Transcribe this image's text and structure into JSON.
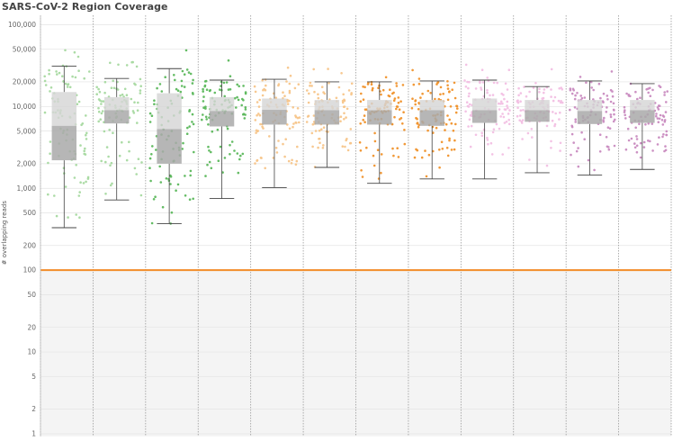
{
  "chart_data": {
    "type": "box",
    "title": "SARS-CoV-2 Region Coverage",
    "xlabel": "",
    "ylabel": "# overlapping reads",
    "yscale": "log",
    "ylim": [
      1,
      130000
    ],
    "yticks": [
      1,
      2,
      5,
      10,
      20,
      50,
      100,
      200,
      500,
      "1,000",
      "2,000",
      "5,000",
      "10,000",
      "20,000",
      "50,000",
      "100,000"
    ],
    "ytick_values": [
      1,
      2,
      5,
      10,
      20,
      50,
      100,
      200,
      500,
      1000,
      2000,
      5000,
      10000,
      20000,
      50000,
      100000
    ],
    "threshold": {
      "value": 100,
      "color": "#f28c28"
    },
    "below_threshold_shade": "#f4f4f4",
    "series": [
      {
        "group": 1,
        "color": "#a6d9a0",
        "min": 330,
        "q1": 2200,
        "median": 5800,
        "q3": 15000,
        "max": 31000
      },
      {
        "group": 2,
        "color": "#a6d9a0",
        "min": 720,
        "q1": 6200,
        "median": 9000,
        "q3": 13000,
        "max": 22000
      },
      {
        "group": 3,
        "color": "#5cb85c",
        "min": 370,
        "q1": 2000,
        "median": 5300,
        "q3": 14500,
        "max": 29000
      },
      {
        "group": 4,
        "color": "#5cb85c",
        "min": 750,
        "q1": 5700,
        "median": 8800,
        "q3": 13000,
        "max": 21000
      },
      {
        "group": 5,
        "color": "#f7c58a",
        "min": 1020,
        "q1": 6000,
        "median": 9100,
        "q3": 12500,
        "max": 21500
      },
      {
        "group": 6,
        "color": "#f7c58a",
        "min": 1800,
        "q1": 6000,
        "median": 9000,
        "q3": 12000,
        "max": 20000
      },
      {
        "group": 7,
        "color": "#f0922b",
        "min": 1150,
        "q1": 6000,
        "median": 9000,
        "q3": 12000,
        "max": 20000
      },
      {
        "group": 8,
        "color": "#f0922b",
        "min": 1300,
        "q1": 5800,
        "median": 9000,
        "q3": 12000,
        "max": 20500
      },
      {
        "group": 9,
        "color": "#f2bfe3",
        "min": 1300,
        "q1": 6300,
        "median": 9000,
        "q3": 12500,
        "max": 21000
      },
      {
        "group": 10,
        "color": "#f2bfe3",
        "min": 1550,
        "q1": 6500,
        "median": 9000,
        "q3": 12000,
        "max": 17500
      },
      {
        "group": 11,
        "color": "#c98bc0",
        "min": 1450,
        "q1": 6100,
        "median": 8800,
        "q3": 12000,
        "max": 20500
      },
      {
        "group": 12,
        "color": "#c98bc0",
        "min": 1700,
        "q1": 6300,
        "median": 9000,
        "q3": 12000,
        "max": 19000
      }
    ],
    "grid": true,
    "legend": "none"
  }
}
